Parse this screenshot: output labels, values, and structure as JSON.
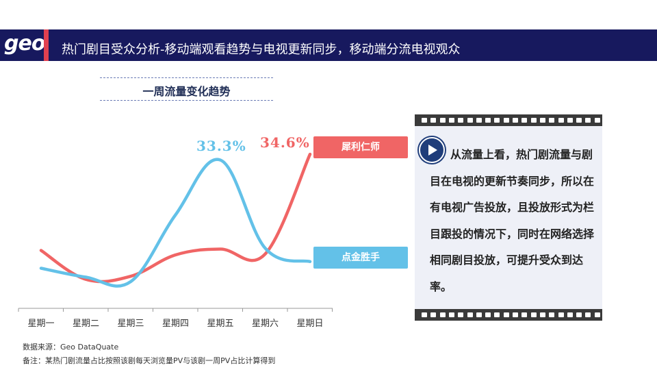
{
  "header": {
    "logo": "geo",
    "title": "热门剧目受众分析-移动端观看趋势与电视更新同步，移动端分流电视观众"
  },
  "chart_data": {
    "type": "line",
    "title": "一周流量变化趋势",
    "categories": [
      "星期一",
      "星期二",
      "星期三",
      "星期四",
      "星期五",
      "星期六",
      "星期日"
    ],
    "series": [
      {
        "name": "犀利仁师",
        "color": "#f06565",
        "values": [
          13.0,
          6.5,
          7.2,
          12.0,
          13.3,
          12.2,
          34.6
        ],
        "peak_label": "34.6%"
      },
      {
        "name": "点金胜手",
        "color": "#63c1e8",
        "values": [
          9.0,
          7.0,
          6.0,
          21.0,
          33.3,
          13.5,
          10.5
        ],
        "peak_label": "33.3%"
      }
    ],
    "ylim": [
      0,
      40
    ]
  },
  "panel": {
    "text": "从流量上看，热门剧流量与剧目在电视的更新节奏同步，所以在有电视广告投放，且投放形式为栏目跟投的情况下，同时在网络选择相同剧目投放，可提升受众到达率。"
  },
  "footer": {
    "source": "数据来源：Geo DataQuate",
    "note": "备注：某热门剧流量占比按照该剧每天浏览量PV与该剧一周PV占比计算得到"
  }
}
